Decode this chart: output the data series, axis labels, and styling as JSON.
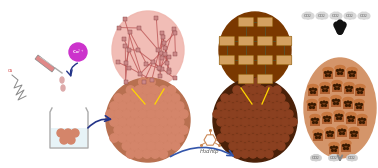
{
  "bg_color": "#ffffff",
  "pink_oval_color": "#f0b8b0",
  "pink_oval_edge": "#d89090",
  "brown_oval_color": "#8b4500",
  "brown_oval_edge": "#5a2d00",
  "bead_circle1_color": "#b87050",
  "bead_color_light": "#d4856a",
  "bead_color_dark": "#8b4513",
  "bead_circle2_color": "#5a2800",
  "orange_ellipse_color": "#d4956a",
  "co2_cloud_color": "#dcdcdc",
  "yellow_line_color": "#ffd700",
  "magenta_color": "#cc33cc",
  "syringe_color": "#e08888",
  "blue_arrow_color": "#223388",
  "chitosan_node_color": "#884444",
  "chitosan_line_color": "#bb6666",
  "linker_color": "#d4a060",
  "linker_line_color": "#884400",
  "beaker_color": "#aaaaaa",
  "water_color": "#d0e8f0",
  "dark_arrow_color": "#111111",
  "gray_arrow_color": "#888888",
  "pellet_top_color": "#c87840",
  "pellet_body_color": "#b06030",
  "pellet_dot_color": "#3a1a00"
}
